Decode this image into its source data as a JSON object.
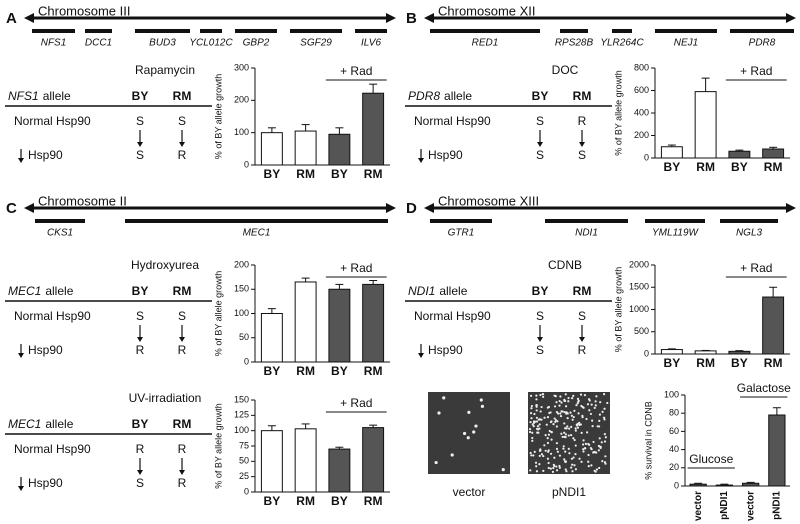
{
  "panels": {
    "A": {
      "label": "A",
      "chromosome": "Chromosome III",
      "genes": [
        "NFS1",
        "DCC1",
        "BUD3",
        "YCL012C",
        "GBP2",
        "SGF29",
        "ILV6"
      ],
      "tables": [
        {
          "condition": "Rapamycin",
          "gene": "NFS1",
          "allele": "allele",
          "columns": [
            "BY",
            "RM"
          ],
          "rows": [
            {
              "name": "Normal Hsp90",
              "values": [
                "S",
                "S"
              ]
            },
            {
              "name": "Hsp90",
              "values": [
                "S",
                "R"
              ]
            }
          ]
        }
      ]
    },
    "B": {
      "label": "B",
      "chromosome": "Chromosome XII",
      "genes": [
        "RED1",
        "RPS28B",
        "YLR264C",
        "NEJ1",
        "PDR8"
      ],
      "tables": [
        {
          "condition": "DOC",
          "gene": "PDR8",
          "allele": "allele",
          "columns": [
            "BY",
            "RM"
          ],
          "rows": [
            {
              "name": "Normal Hsp90",
              "values": [
                "S",
                "R"
              ]
            },
            {
              "name": "Hsp90",
              "values": [
                "S",
                "S"
              ]
            }
          ]
        }
      ]
    },
    "C": {
      "label": "C",
      "chromosome": "Chromosome II",
      "genes": [
        "CKS1",
        "MEC1"
      ],
      "tables": [
        {
          "condition": "Hydroxyurea",
          "gene": "MEC1",
          "allele": "allele",
          "columns": [
            "BY",
            "RM"
          ],
          "rows": [
            {
              "name": "Normal Hsp90",
              "values": [
                "S",
                "S"
              ]
            },
            {
              "name": "Hsp90",
              "values": [
                "R",
                "R"
              ]
            }
          ]
        },
        {
          "condition": "UV-irradiation",
          "gene": "MEC1",
          "allele": "allele",
          "columns": [
            "BY",
            "RM"
          ],
          "rows": [
            {
              "name": "Normal Hsp90",
              "values": [
                "R",
                "R"
              ]
            },
            {
              "name": "Hsp90",
              "values": [
                "S",
                "R"
              ]
            }
          ]
        }
      ]
    },
    "D": {
      "label": "D",
      "chromosome": "Chromosome XIII",
      "genes": [
        "GTR1",
        "NDI1",
        "YML119W",
        "NGL3"
      ],
      "tables": [
        {
          "condition": "CDNB",
          "gene": "NDI1",
          "allele": "allele",
          "columns": [
            "BY",
            "RM"
          ],
          "rows": [
            {
              "name": "Normal Hsp90",
              "values": [
                "S",
                "S"
              ]
            },
            {
              "name": "Hsp90",
              "values": [
                "S",
                "R"
              ]
            }
          ]
        }
      ],
      "images": [
        "vector",
        "pNDI1"
      ]
    }
  },
  "chart_data": [
    {
      "type": "bar",
      "ylabel": "% of BY allele growth",
      "categories": [
        "BY",
        "RM",
        "BY",
        "RM"
      ],
      "values": [
        100,
        105,
        95,
        222
      ],
      "errors": [
        15,
        20,
        20,
        28
      ],
      "colors": [
        "#ffffff",
        "#ffffff",
        "#555555",
        "#555555"
      ],
      "ylim": [
        0,
        300
      ],
      "yticks": [
        0,
        100,
        200,
        300
      ],
      "annotations": [
        "+ Rad"
      ]
    },
    {
      "type": "bar",
      "ylabel": "% of BY allele growth",
      "categories": [
        "BY",
        "RM",
        "BY",
        "RM"
      ],
      "values": [
        100,
        590,
        60,
        80
      ],
      "errors": [
        15,
        120,
        10,
        15
      ],
      "colors": [
        "#ffffff",
        "#ffffff",
        "#555555",
        "#555555"
      ],
      "ylim": [
        0,
        800
      ],
      "yticks": [
        0,
        200,
        400,
        600,
        800
      ],
      "annotations": [
        "+ Rad"
      ]
    },
    {
      "type": "bar",
      "ylabel": "% of BY allele growth",
      "categories": [
        "BY",
        "RM",
        "BY",
        "RM"
      ],
      "values": [
        100,
        165,
        150,
        160
      ],
      "errors": [
        10,
        8,
        10,
        8
      ],
      "colors": [
        "#ffffff",
        "#ffffff",
        "#555555",
        "#555555"
      ],
      "ylim": [
        0,
        200
      ],
      "yticks": [
        0,
        50,
        100,
        150,
        200
      ],
      "annotations": [
        "+ Rad"
      ]
    },
    {
      "type": "bar",
      "ylabel": "% of BY allele growth",
      "categories": [
        "BY",
        "RM",
        "BY",
        "RM"
      ],
      "values": [
        100,
        103,
        70,
        105
      ],
      "errors": [
        8,
        8,
        3,
        4
      ],
      "colors": [
        "#ffffff",
        "#ffffff",
        "#555555",
        "#555555"
      ],
      "ylim": [
        0,
        150
      ],
      "yticks": [
        0,
        25,
        50,
        75,
        100,
        125,
        150
      ],
      "annotations": [
        "+ Rad"
      ]
    },
    {
      "type": "bar",
      "ylabel": "% of BY allele growth",
      "categories": [
        "BY",
        "RM",
        "BY",
        "RM"
      ],
      "values": [
        100,
        70,
        60,
        1280
      ],
      "errors": [
        15,
        10,
        15,
        220
      ],
      "colors": [
        "#ffffff",
        "#ffffff",
        "#555555",
        "#555555"
      ],
      "ylim": [
        0,
        2000
      ],
      "yticks": [
        0,
        500,
        1000,
        1500,
        2000
      ],
      "annotations": [
        "+ Rad"
      ]
    },
    {
      "type": "bar",
      "ylabel": "% survival in CDNB",
      "categories": [
        "vector",
        "pNDI1",
        "vector",
        "pNDI1"
      ],
      "values": [
        2,
        1,
        3,
        78
      ],
      "errors": [
        1,
        1,
        1,
        8
      ],
      "colors": [
        "#555555",
        "#555555",
        "#555555",
        "#555555"
      ],
      "ylim": [
        0,
        100
      ],
      "yticks": [
        0,
        20,
        40,
        60,
        80,
        100
      ],
      "annotations": [
        "Glucose",
        "Galactose"
      ]
    }
  ]
}
